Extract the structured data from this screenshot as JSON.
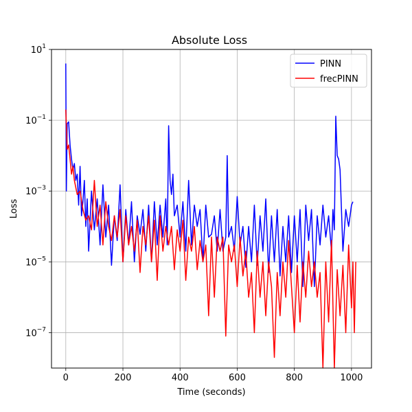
{
  "chart_data": {
    "type": "line",
    "title": "Absolute Loss",
    "xlabel": "Time (seconds)",
    "ylabel": "Loss",
    "xlim": [
      -50,
      1070
    ],
    "ylim": [
      1e-08,
      10
    ],
    "yscale": "log",
    "grid": true,
    "legend_position": "top-right",
    "xticks": [
      0,
      200,
      400,
      600,
      800,
      1000
    ],
    "xtick_labels": [
      "0",
      "200",
      "400",
      "600",
      "800",
      "1000"
    ],
    "yticks": [
      1e-07,
      1e-05,
      0.001,
      0.1,
      10
    ],
    "ytick_labels": [
      {
        "base": "10",
        "exp": "−7"
      },
      {
        "base": "10",
        "exp": "−5"
      },
      {
        "base": "10",
        "exp": "−3"
      },
      {
        "base": "10",
        "exp": "−1"
      },
      {
        "base": "10",
        "exp": "1"
      }
    ],
    "series": [
      {
        "name": "PINN",
        "color": "#0000ff",
        "x": [
          0,
          2,
          5,
          10,
          15,
          20,
          25,
          30,
          35,
          40,
          45,
          50,
          55,
          60,
          65,
          70,
          75,
          80,
          90,
          100,
          110,
          120,
          130,
          140,
          150,
          160,
          170,
          180,
          190,
          200,
          210,
          220,
          230,
          240,
          250,
          260,
          270,
          280,
          290,
          300,
          310,
          320,
          330,
          340,
          350,
          355,
          360,
          365,
          370,
          375,
          380,
          390,
          400,
          410,
          420,
          430,
          440,
          450,
          460,
          470,
          480,
          490,
          500,
          510,
          520,
          530,
          540,
          550,
          560,
          565,
          570,
          580,
          590,
          600,
          610,
          620,
          630,
          640,
          650,
          660,
          670,
          680,
          690,
          700,
          710,
          720,
          730,
          740,
          750,
          760,
          770,
          780,
          790,
          800,
          810,
          820,
          830,
          840,
          850,
          860,
          870,
          880,
          890,
          900,
          910,
          920,
          930,
          935,
          940,
          945,
          950,
          955,
          960,
          970,
          980,
          990,
          1000,
          1005
        ],
        "y": [
          4,
          0.001,
          0.08,
          0.09,
          0.02,
          0.008,
          0.004,
          0.006,
          0.002,
          0.003,
          0.0004,
          0.005,
          0.0002,
          0.0005,
          0.002,
          0.0001,
          0.0006,
          2e-05,
          0.001,
          8e-05,
          0.0006,
          3e-05,
          0.0015,
          5e-05,
          0.0004,
          8e-06,
          0.0002,
          4e-05,
          0.0015,
          1e-05,
          0.0003,
          3e-05,
          0.0005,
          1e-05,
          0.0002,
          6e-05,
          0.0003,
          2e-05,
          0.0004,
          1e-05,
          0.0005,
          3e-05,
          0.0004,
          5e-05,
          0.0006,
          3e-05,
          0.07,
          0.002,
          0.0008,
          0.003,
          0.0002,
          0.0004,
          5e-05,
          0.0005,
          2e-05,
          0.002,
          3e-05,
          0.0004,
          0.0001,
          0.0003,
          1e-05,
          0.0004,
          5e-05,
          6e-05,
          0.0002,
          2e-05,
          0.0003,
          2e-05,
          5e-05,
          0.01,
          5e-05,
          0.0001,
          2e-05,
          0.0007,
          3e-05,
          0.0001,
          7e-06,
          0.0001,
          1e-05,
          0.0004,
          8e-06,
          0.0002,
          2e-05,
          0.0006,
          5e-06,
          0.0002,
          1e-05,
          0.0003,
          4e-06,
          0.0001,
          1e-05,
          0.0002,
          5e-06,
          0.0002,
          1e-05,
          0.0003,
          2e-06,
          0.0004,
          4e-05,
          0.0003,
          2e-06,
          0.0002,
          3e-05,
          0.0004,
          5e-05,
          0.0002,
          2e-05,
          0.0003,
          8e-05,
          0.13,
          0.01,
          0.008,
          0.004,
          2e-05,
          0.0003,
          0.0001,
          0.0004,
          0.0005
        ]
      },
      {
        "name": "frecPINN",
        "color": "#ff0000",
        "x": [
          0,
          5,
          10,
          15,
          20,
          25,
          30,
          40,
          50,
          60,
          70,
          80,
          90,
          100,
          110,
          120,
          130,
          140,
          150,
          160,
          170,
          180,
          190,
          200,
          210,
          220,
          230,
          240,
          250,
          260,
          270,
          280,
          290,
          300,
          310,
          320,
          330,
          340,
          350,
          360,
          370,
          380,
          390,
          400,
          410,
          420,
          430,
          440,
          450,
          460,
          470,
          480,
          490,
          500,
          510,
          520,
          530,
          540,
          550,
          560,
          570,
          580,
          590,
          600,
          610,
          620,
          630,
          640,
          650,
          660,
          670,
          680,
          690,
          700,
          710,
          720,
          730,
          740,
          750,
          760,
          770,
          780,
          790,
          800,
          810,
          820,
          830,
          840,
          850,
          860,
          870,
          880,
          890,
          900,
          910,
          920,
          930,
          940,
          950,
          960,
          970,
          980,
          990,
          1000,
          1005,
          1010,
          1015
        ],
        "y": [
          0.2,
          0.015,
          0.02,
          0.008,
          0.003,
          0.005,
          0.002,
          0.0008,
          0.001,
          0.0003,
          0.00015,
          0.0002,
          8e-05,
          0.002,
          0.0001,
          0.0004,
          3e-05,
          0.0005,
          0.0001,
          4e-05,
          0.0002,
          5e-05,
          0.0003,
          1e-05,
          0.0002,
          3e-05,
          0.0001,
          2e-05,
          0.00015,
          5e-06,
          0.0001,
          3e-05,
          0.0002,
          1e-05,
          0.00015,
          3e-06,
          0.0002,
          2e-05,
          0.0001,
          3e-05,
          0.0001,
          6e-06,
          8e-05,
          2e-05,
          0.00015,
          3e-06,
          5e-05,
          2e-05,
          0.0001,
          6e-06,
          4e-05,
          1e-05,
          3e-05,
          3e-07,
          5e-05,
          1e-06,
          5e-05,
          2e-05,
          5e-05,
          8e-08,
          3e-05,
          1e-05,
          3e-05,
          2e-06,
          5e-05,
          4e-06,
          2e-05,
          1e-06,
          5e-06,
          1e-07,
          2e-05,
          1e-06,
          1e-05,
          3e-07,
          1e-05,
          2e-06,
          2e-08,
          5e-06,
          3e-07,
          1e-05,
          1e-06,
          4e-05,
          2e-06,
          1e-07,
          8e-06,
          2e-07,
          1e-05,
          1e-06,
          2e-05,
          2e-06,
          1e-05,
          1e-06,
          5e-06,
          1e-08,
          1e-05,
          2e-07,
          4e-05,
          1e-08,
          6e-06,
          3e-07,
          8e-06,
          1e-07,
          3e-05,
          5e-07,
          1e-05,
          1e-07,
          1e-05
        ]
      }
    ]
  }
}
